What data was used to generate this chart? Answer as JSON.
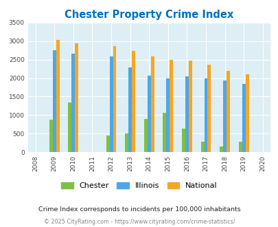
{
  "title": "Chester Property Crime Index",
  "all_years": [
    2008,
    2009,
    2010,
    2011,
    2012,
    2013,
    2014,
    2015,
    2016,
    2017,
    2018,
    2019,
    2020
  ],
  "data_years": [
    2009,
    2010,
    2012,
    2013,
    2014,
    2015,
    2016,
    2017,
    2018,
    2019
  ],
  "chester": [
    880,
    1350,
    450,
    510,
    900,
    1060,
    640,
    290,
    160,
    285
  ],
  "illinois": [
    2750,
    2670,
    2590,
    2290,
    2060,
    1990,
    2050,
    2000,
    1940,
    1840
  ],
  "national": [
    3040,
    2950,
    2860,
    2730,
    2590,
    2490,
    2470,
    2370,
    2200,
    2100
  ],
  "ylim": [
    0,
    3500
  ],
  "yticks": [
    0,
    500,
    1000,
    1500,
    2000,
    2500,
    3000,
    3500
  ],
  "chester_color": "#7dc142",
  "illinois_color": "#4da6e8",
  "national_color": "#f5a623",
  "bg_color": "#ddeef5",
  "title_color": "#0070c0",
  "subtitle": "Crime Index corresponds to incidents per 100,000 inhabitants",
  "footer": "© 2025 CityRating.com - https://www.cityrating.com/crime-statistics/",
  "bar_width": 0.18,
  "legend_labels": [
    "Chester",
    "Illinois",
    "National"
  ]
}
